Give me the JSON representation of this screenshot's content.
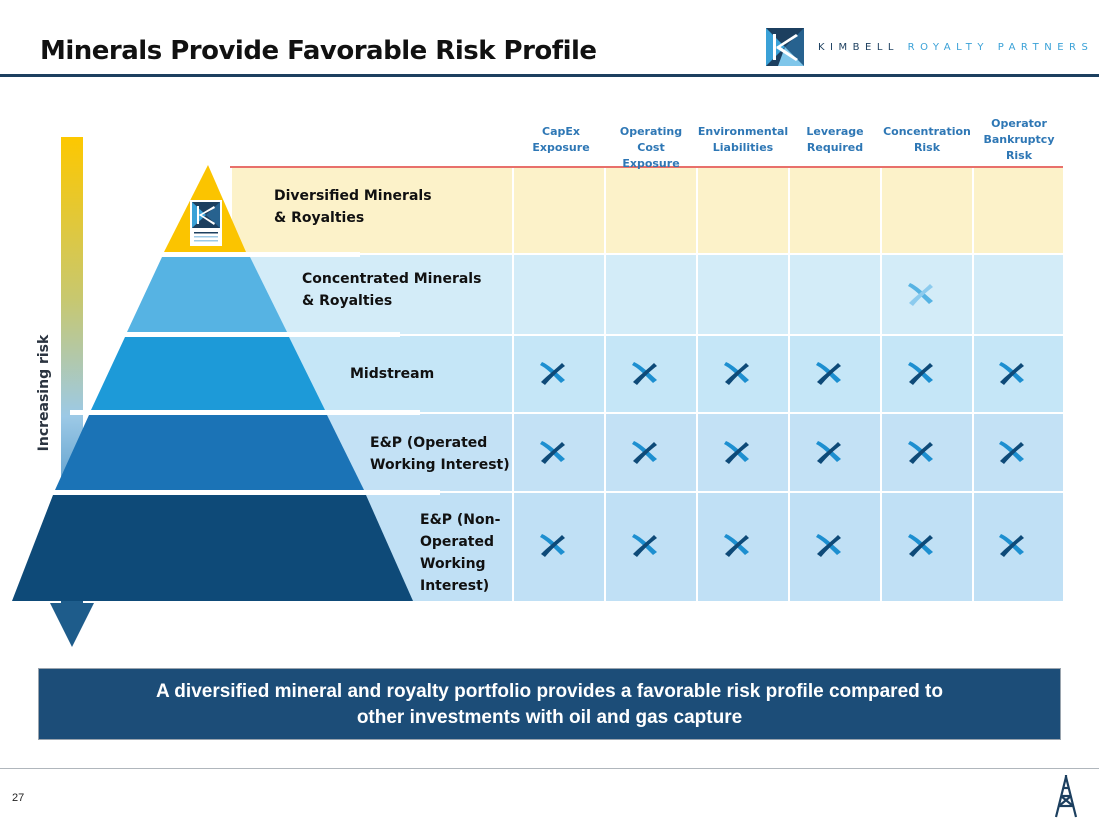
{
  "slide": {
    "title": "Minerals Provide Favorable Risk Profile",
    "page_number": "27",
    "logo": {
      "word1": "KIMBELL",
      "word2": "ROYALTY PARTNERS",
      "mark_icon": "kimbell-k-logo-icon"
    },
    "risk_axis_label": "Increasing risk",
    "banner_line1": "A diversified mineral and royalty portfolio provides a favorable risk profile compared to",
    "banner_line2": "other investments with oil and gas capture",
    "footer_icon": "oil-derrick-icon"
  },
  "colors": {
    "navy": "#1c4d78",
    "title_rule": "#1c3f5f",
    "header_text": "#2e77b5",
    "tier1": "#fbc400",
    "tier2": "#56b3e3",
    "tier3": "#1d9ad8",
    "tier4": "#1b73b6",
    "tier5": "#0e4a78",
    "row_highlight": "#fcf2c9",
    "row_light": "#d3ecf8",
    "red_rule": "#e0403a"
  },
  "table": {
    "columns": [
      {
        "line1": "CapEx",
        "line2": "Exposure",
        "line3": ""
      },
      {
        "line1": "Operating Cost",
        "line2": "Exposure",
        "line3": ""
      },
      {
        "line1": "Environmental",
        "line2": "Liabilities",
        "line3": ""
      },
      {
        "line1": "Leverage",
        "line2": "Required",
        "line3": ""
      },
      {
        "line1": "Concentration",
        "line2": "Risk",
        "line3": ""
      },
      {
        "line1": "Operator",
        "line2": "Bankruptcy",
        "line3": "Risk"
      }
    ],
    "rows": [
      {
        "line1": "Diversified Minerals",
        "line2": "& Royalties",
        "line3": "",
        "line4": "",
        "marks": [
          false,
          false,
          false,
          false,
          false,
          false
        ]
      },
      {
        "line1": "Concentrated Minerals",
        "line2": "& Royalties",
        "line3": "",
        "line4": "",
        "marks": [
          false,
          false,
          false,
          false,
          true,
          false
        ]
      },
      {
        "line1": "Midstream",
        "line2": "",
        "line3": "",
        "line4": "",
        "marks": [
          true,
          true,
          true,
          true,
          true,
          true
        ]
      },
      {
        "line1": "E&P (Operated",
        "line2": "Working Interest)",
        "line3": "",
        "line4": "",
        "marks": [
          true,
          true,
          true,
          true,
          true,
          true
        ]
      },
      {
        "line1": "E&P (Non-",
        "line2": "Operated",
        "line3": "Working",
        "line4": "Interest)",
        "marks": [
          true,
          true,
          true,
          true,
          true,
          true
        ]
      }
    ]
  }
}
